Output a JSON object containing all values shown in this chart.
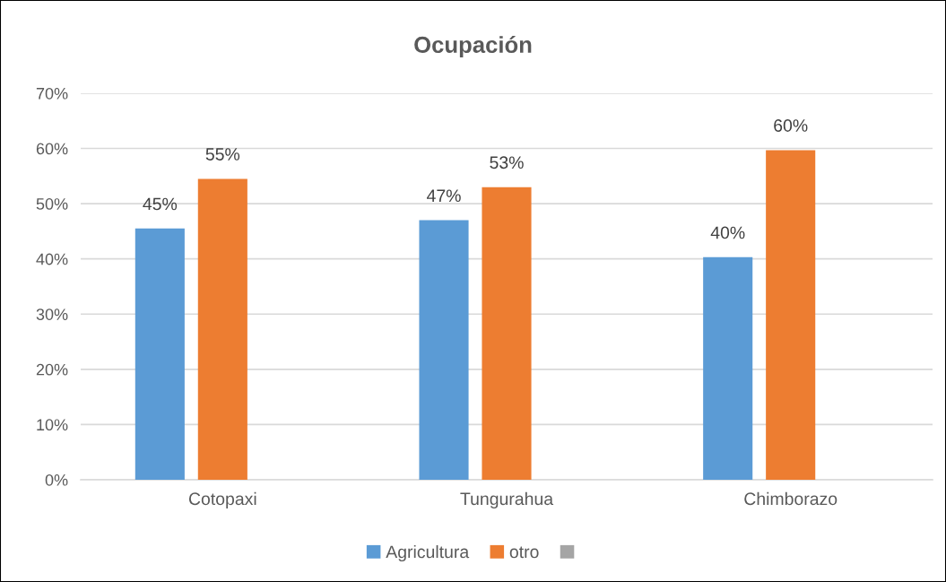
{
  "chart_data": {
    "type": "bar",
    "title": "Ocupación",
    "categories": [
      "Cotopaxi",
      "Tungurahua",
      "Chimborazo"
    ],
    "series": [
      {
        "name": "Agricultura",
        "color": "#5b9bd5",
        "values": [
          45.5,
          47.0,
          40.3
        ],
        "value_labels": [
          "45%",
          "47%",
          "40%"
        ]
      },
      {
        "name": "otro",
        "color": "#ed7d31",
        "values": [
          54.5,
          53.0,
          59.7
        ],
        "value_labels": [
          "55%",
          "53%",
          "60%"
        ]
      },
      {
        "color": "#a5a5a5",
        "values": [
          null,
          null,
          null
        ]
      }
    ],
    "ylim": [
      0,
      70
    ],
    "yticks": [
      {
        "value": 0,
        "label": "0%"
      },
      {
        "value": 10,
        "label": "10%"
      },
      {
        "value": 20,
        "label": "20%"
      },
      {
        "value": 30,
        "label": "30%"
      },
      {
        "value": 40,
        "label": "40%"
      },
      {
        "value": 50,
        "label": "50%"
      },
      {
        "value": 60,
        "label": "60%"
      },
      {
        "value": 70,
        "label": "70%"
      }
    ],
    "grid": "y",
    "legend": "bottom"
  }
}
